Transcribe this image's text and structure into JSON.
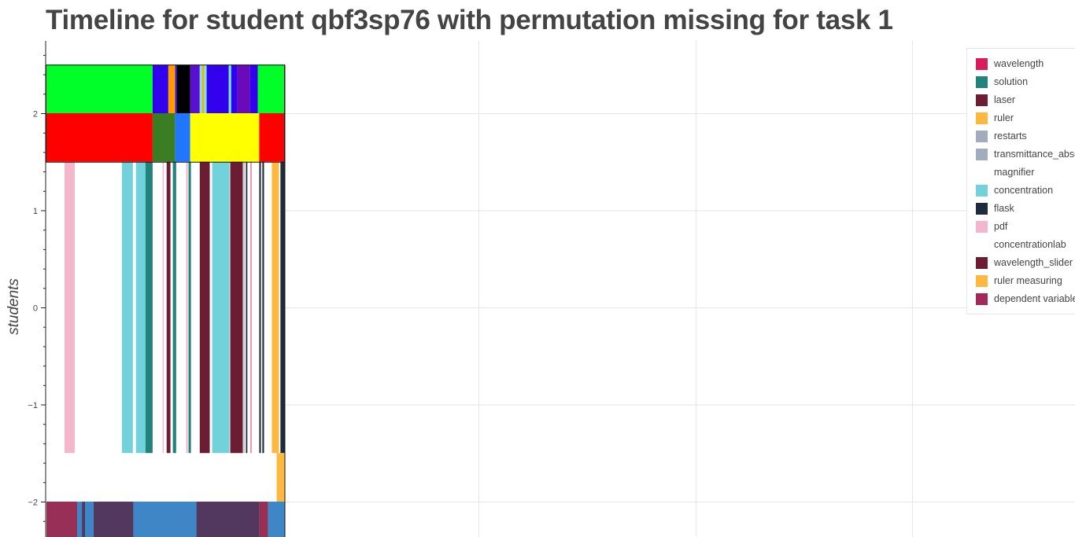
{
  "chart_data": {
    "type": "timeline",
    "title": "Timeline for student qbf3sp76 with permutation missing for task 1",
    "ylabel": "students",
    "xlabel": "",
    "y_ticks": [
      {
        "value": 2,
        "label": "2"
      },
      {
        "value": 1,
        "label": "1"
      },
      {
        "value": 0,
        "label": "0"
      },
      {
        "value": -1,
        "label": "−1"
      },
      {
        "value": -2,
        "label": "−2"
      }
    ],
    "grid": true,
    "legend_position": "top-right",
    "legend": [
      {
        "label": "wavelength",
        "color": "#d81b5a"
      },
      {
        "label": "solution",
        "color": "#22827c"
      },
      {
        "label": "laser",
        "color": "#6c1d32"
      },
      {
        "label": "ruler",
        "color": "#fdb840"
      },
      {
        "label": "restarts",
        "color": "#a1adbd"
      },
      {
        "label": "transmittance_absorbance",
        "color": "#a1adbd"
      },
      {
        "label": "magnifier",
        "color": "#ffffff"
      },
      {
        "label": "concentration",
        "color": "#72d2dc"
      },
      {
        "label": "flask",
        "color": "#1c2b3e"
      },
      {
        "label": "pdf",
        "color": "#f3b6cb"
      },
      {
        "label": "concentrationlab",
        "color": "#ffffff"
      },
      {
        "label": "wavelength_slider",
        "color": "#6c1d32"
      },
      {
        "label": "ruler measuring",
        "color": "#fdb840"
      },
      {
        "label": "dependent variable",
        "color": "#a12a5a"
      }
    ],
    "rows": [
      {
        "y_range": [
          2,
          2.5
        ],
        "segments": [
          {
            "start": 0,
            "end": 44.6,
            "color": "#00ff28"
          },
          {
            "start": 44.6,
            "end": 51.2,
            "color": "#3300ee"
          },
          {
            "start": 51.2,
            "end": 54.1,
            "color": "#ff9a00"
          },
          {
            "start": 54.1,
            "end": 54.8,
            "color": "#3300ee"
          },
          {
            "start": 54.8,
            "end": 60.4,
            "color": "#000000"
          },
          {
            "start": 60.4,
            "end": 64.4,
            "color": "#5a0fd0"
          },
          {
            "start": 64.4,
            "end": 65.3,
            "color": "#6fe8ff"
          },
          {
            "start": 65.3,
            "end": 66.3,
            "color": "#ffaa00"
          },
          {
            "start": 66.3,
            "end": 67.3,
            "color": "#6fe8ff"
          },
          {
            "start": 67.3,
            "end": 76.6,
            "color": "#3300ee"
          },
          {
            "start": 76.6,
            "end": 77.6,
            "color": "#6fe8ff"
          },
          {
            "start": 77.6,
            "end": 80.2,
            "color": "#3300ee"
          },
          {
            "start": 80.2,
            "end": 85.5,
            "color": "#6a0ab8"
          },
          {
            "start": 85.5,
            "end": 88.8,
            "color": "#3300ee"
          },
          {
            "start": 88.8,
            "end": 100,
            "color": "#00ff28"
          }
        ]
      },
      {
        "y_range": [
          1.5,
          2
        ],
        "segments": [
          {
            "start": 0,
            "end": 44.6,
            "color": "#ff0000"
          },
          {
            "start": 44.6,
            "end": 54.1,
            "color": "#3a7d22"
          },
          {
            "start": 54.1,
            "end": 60.4,
            "color": "#2176ff"
          },
          {
            "start": 60.4,
            "end": 89.4,
            "color": "#ffff00"
          },
          {
            "start": 89.4,
            "end": 100,
            "color": "#ff0000"
          }
        ]
      },
      {
        "y_range": [
          -1.5,
          1.5
        ],
        "segments": [
          {
            "start": 7.6,
            "end": 11.9,
            "color": "#f3b6cb"
          },
          {
            "start": 31.7,
            "end": 36.3,
            "color": "#72d2dc"
          },
          {
            "start": 37.6,
            "end": 41.6,
            "color": "#72d2dc"
          },
          {
            "start": 41.6,
            "end": 44.6,
            "color": "#22827c"
          },
          {
            "start": 48.8,
            "end": 49.3,
            "color": "#f3b6cb"
          },
          {
            "start": 50.5,
            "end": 52.1,
            "color": "#6c1d32"
          },
          {
            "start": 53.1,
            "end": 54.5,
            "color": "#22827c"
          },
          {
            "start": 58.7,
            "end": 59.4,
            "color": "#f3b6cb"
          },
          {
            "start": 59.7,
            "end": 60.7,
            "color": "#22827c"
          },
          {
            "start": 64.4,
            "end": 68.6,
            "color": "#6c1d32"
          },
          {
            "start": 69.6,
            "end": 76.9,
            "color": "#72d2dc"
          },
          {
            "start": 77.2,
            "end": 82.5,
            "color": "#6c1d32"
          },
          {
            "start": 82.8,
            "end": 83.2,
            "color": "#a1adbd"
          },
          {
            "start": 83.8,
            "end": 84.4,
            "color": "#1c2b3e"
          },
          {
            "start": 85.8,
            "end": 86.1,
            "color": "#d81b5a"
          },
          {
            "start": 89.4,
            "end": 90.1,
            "color": "#1c2b3e"
          },
          {
            "start": 90.7,
            "end": 91.4,
            "color": "#1c2b3e"
          },
          {
            "start": 94.7,
            "end": 97.7,
            "color": "#fdb840"
          },
          {
            "start": 97.7,
            "end": 98.3,
            "color": "#ffffff"
          },
          {
            "start": 98.3,
            "end": 100,
            "color": "#1c2b3e"
          }
        ]
      },
      {
        "y_range": [
          -2,
          -1.5
        ],
        "segments": [
          {
            "start": 96.7,
            "end": 100,
            "color": "#fdb840"
          }
        ]
      },
      {
        "y_range": [
          -2.5,
          -2
        ],
        "segments": [
          {
            "start": 0,
            "end": 12.9,
            "color": "#972f57"
          },
          {
            "start": 12.9,
            "end": 14.9,
            "color": "#3e86c6"
          },
          {
            "start": 14.9,
            "end": 16.2,
            "color": "#52385f"
          },
          {
            "start": 16.2,
            "end": 19.8,
            "color": "#3e86c6"
          },
          {
            "start": 19.8,
            "end": 36.6,
            "color": "#52385f"
          },
          {
            "start": 36.6,
            "end": 63.0,
            "color": "#3e86c6"
          },
          {
            "start": 63.0,
            "end": 89.4,
            "color": "#52385f"
          },
          {
            "start": 89.4,
            "end": 93.1,
            "color": "#972f57"
          },
          {
            "start": 93.1,
            "end": 100,
            "color": "#3e86c6"
          }
        ]
      }
    ]
  }
}
